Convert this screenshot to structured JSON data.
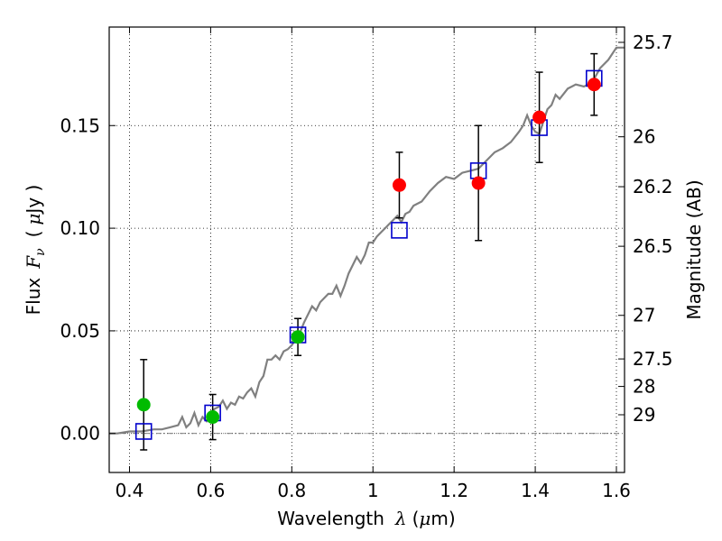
{
  "chart_data": {
    "type": "scatter",
    "xlabel": {
      "prefix": "Wavelength",
      "symbol": "λ",
      "unit_open": "(",
      "unit_mu": "μ",
      "unit_rest": "m)"
    },
    "ylabel": {
      "prefix": "Flux",
      "symbol": "F",
      "subscript": "ν",
      "unit_open": "(",
      "unit_mu": "μ",
      "unit_rest": "Jy )"
    },
    "y2label": "Magnitude (AB)",
    "xlim": [
      0.35,
      1.62
    ],
    "ylim": [
      -0.019,
      0.198
    ],
    "grid": true,
    "x_ticks": [
      {
        "value": 0.4,
        "label": "0.4"
      },
      {
        "value": 0.6,
        "label": "0.6"
      },
      {
        "value": 0.8,
        "label": "0.8"
      },
      {
        "value": 1.0,
        "label": "1"
      },
      {
        "value": 1.2,
        "label": "1.2"
      },
      {
        "value": 1.4,
        "label": "1.4"
      },
      {
        "value": 1.6,
        "label": "1.6"
      }
    ],
    "y_ticks": [
      {
        "value": 0.0,
        "label": "0.00"
      },
      {
        "value": 0.05,
        "label": "0.05"
      },
      {
        "value": 0.1,
        "label": "0.10"
      },
      {
        "value": 0.15,
        "label": "0.15"
      }
    ],
    "mag_ticks": [
      {
        "value": 25.7,
        "label": "25.7"
      },
      {
        "value": 26.0,
        "label": "26"
      },
      {
        "value": 26.2,
        "label": "26.2"
      },
      {
        "value": 26.5,
        "label": "26.5"
      },
      {
        "value": 27.0,
        "label": "27"
      },
      {
        "value": 27.5,
        "label": "27.5"
      },
      {
        "value": 28.0,
        "label": "28"
      },
      {
        "value": 29.0,
        "label": "29"
      }
    ],
    "zero_line": 0.0,
    "colors": {
      "model": "#808080",
      "observed_red": "#ff0000",
      "observed_green": "#00bb00",
      "model_box": "#0000cc",
      "errorbar": "#000000",
      "zero_line": "#555555"
    },
    "model_spectrum": {
      "x": [
        0.35,
        0.37,
        0.4,
        0.43,
        0.46,
        0.48,
        0.5,
        0.52,
        0.53,
        0.54,
        0.55,
        0.56,
        0.57,
        0.58,
        0.59,
        0.6,
        0.61,
        0.62,
        0.63,
        0.64,
        0.65,
        0.66,
        0.67,
        0.68,
        0.69,
        0.7,
        0.71,
        0.72,
        0.73,
        0.74,
        0.75,
        0.76,
        0.77,
        0.78,
        0.79,
        0.8,
        0.81,
        0.82,
        0.83,
        0.84,
        0.85,
        0.86,
        0.87,
        0.88,
        0.89,
        0.9,
        0.91,
        0.92,
        0.93,
        0.94,
        0.95,
        0.96,
        0.97,
        0.98,
        0.99,
        1.0,
        1.01,
        1.02,
        1.03,
        1.04,
        1.05,
        1.06,
        1.07,
        1.08,
        1.09,
        1.1,
        1.12,
        1.14,
        1.16,
        1.18,
        1.2,
        1.22,
        1.24,
        1.26,
        1.28,
        1.3,
        1.32,
        1.34,
        1.36,
        1.37,
        1.38,
        1.39,
        1.4,
        1.41,
        1.42,
        1.43,
        1.44,
        1.45,
        1.46,
        1.48,
        1.5,
        1.52,
        1.54,
        1.56,
        1.58,
        1.6,
        1.62
      ],
      "y": [
        0.0,
        0.0,
        0.001,
        0.001,
        0.002,
        0.002,
        0.003,
        0.004,
        0.008,
        0.003,
        0.005,
        0.01,
        0.004,
        0.008,
        0.006,
        0.01,
        0.012,
        0.013,
        0.016,
        0.012,
        0.015,
        0.014,
        0.018,
        0.017,
        0.02,
        0.022,
        0.018,
        0.025,
        0.028,
        0.036,
        0.036,
        0.038,
        0.036,
        0.04,
        0.041,
        0.043,
        0.046,
        0.049,
        0.054,
        0.058,
        0.062,
        0.06,
        0.064,
        0.066,
        0.068,
        0.068,
        0.072,
        0.067,
        0.072,
        0.078,
        0.082,
        0.086,
        0.083,
        0.087,
        0.093,
        0.093,
        0.096,
        0.098,
        0.1,
        0.102,
        0.104,
        0.106,
        0.103,
        0.107,
        0.108,
        0.111,
        0.113,
        0.118,
        0.122,
        0.125,
        0.124,
        0.127,
        0.128,
        0.129,
        0.133,
        0.137,
        0.139,
        0.142,
        0.147,
        0.15,
        0.155,
        0.15,
        0.147,
        0.146,
        0.152,
        0.158,
        0.16,
        0.165,
        0.163,
        0.168,
        0.17,
        0.169,
        0.171,
        0.178,
        0.182,
        0.188,
        0.188
      ]
    },
    "series": [
      {
        "name": "observed-red",
        "marker": "circle",
        "points": [
          {
            "x": 1.065,
            "y": 0.121,
            "err": 0.016
          },
          {
            "x": 1.26,
            "y": 0.122,
            "err": 0.028
          },
          {
            "x": 1.41,
            "y": 0.154,
            "err": 0.022
          },
          {
            "x": 1.545,
            "y": 0.17,
            "err": 0.015
          }
        ]
      },
      {
        "name": "observed-green",
        "marker": "circle",
        "points": [
          {
            "x": 0.435,
            "y": 0.014,
            "err": 0.022
          },
          {
            "x": 0.605,
            "y": 0.008,
            "err": 0.011
          },
          {
            "x": 0.815,
            "y": 0.047,
            "err": 0.009
          }
        ]
      },
      {
        "name": "model-photometry",
        "marker": "square",
        "points": [
          {
            "x": 0.435,
            "y": 0.001
          },
          {
            "x": 0.605,
            "y": 0.01
          },
          {
            "x": 0.815,
            "y": 0.048
          },
          {
            "x": 1.065,
            "y": 0.099
          },
          {
            "x": 1.26,
            "y": 0.128
          },
          {
            "x": 1.41,
            "y": 0.149
          },
          {
            "x": 1.545,
            "y": 0.173
          }
        ]
      }
    ]
  }
}
